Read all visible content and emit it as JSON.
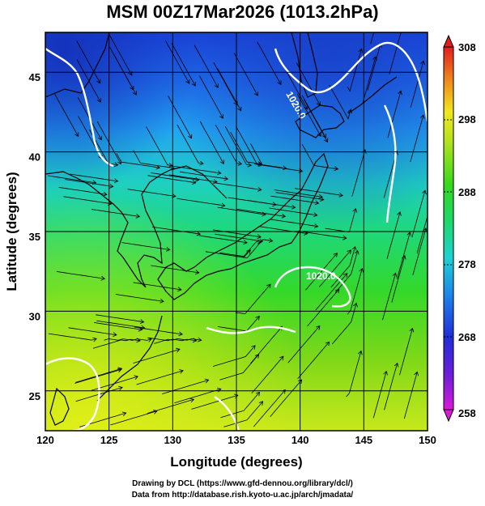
{
  "title": "MSM 00Z17Mar2026 (1013.2hPa)",
  "axes": {
    "xlabel": "Longitude (degrees)",
    "ylabel": "Latitude  (degrees)",
    "x_ticks": [
      "120",
      "125",
      "130",
      "135",
      "140",
      "145",
      "150"
    ],
    "y_ticks": [
      "25",
      "30",
      "35",
      "40",
      "45"
    ]
  },
  "colorbar": {
    "ticks": [
      "308",
      "298",
      "288",
      "278",
      "268",
      "258"
    ],
    "min": 258,
    "max": 308
  },
  "contour_labels": [
    "1020.0",
    "1020.0"
  ],
  "credits": {
    "line1": "Drawing by DCL (https://www.gfd-dennou.org/library/dcl/)",
    "line2": "Data from http://database.rish.kyoto-u.ac.jp/arch/jmadata/"
  },
  "chart_data": {
    "type": "heatmap",
    "title": "MSM 00Z17Mar2026 (1013.2hPa)",
    "xlabel": "Longitude (degrees)",
    "ylabel": "Latitude  (degrees)",
    "xlim": [
      120,
      150
    ],
    "ylim": [
      22.5,
      47.5
    ],
    "colorbar_range": [
      258,
      308
    ],
    "colorbar_ticks": [
      258,
      268,
      278,
      288,
      298,
      308
    ],
    "grid": true,
    "overlays": [
      "streamlines",
      "white pressure contours",
      "coastlines"
    ],
    "contour_levels": [
      1020.0
    ]
  }
}
